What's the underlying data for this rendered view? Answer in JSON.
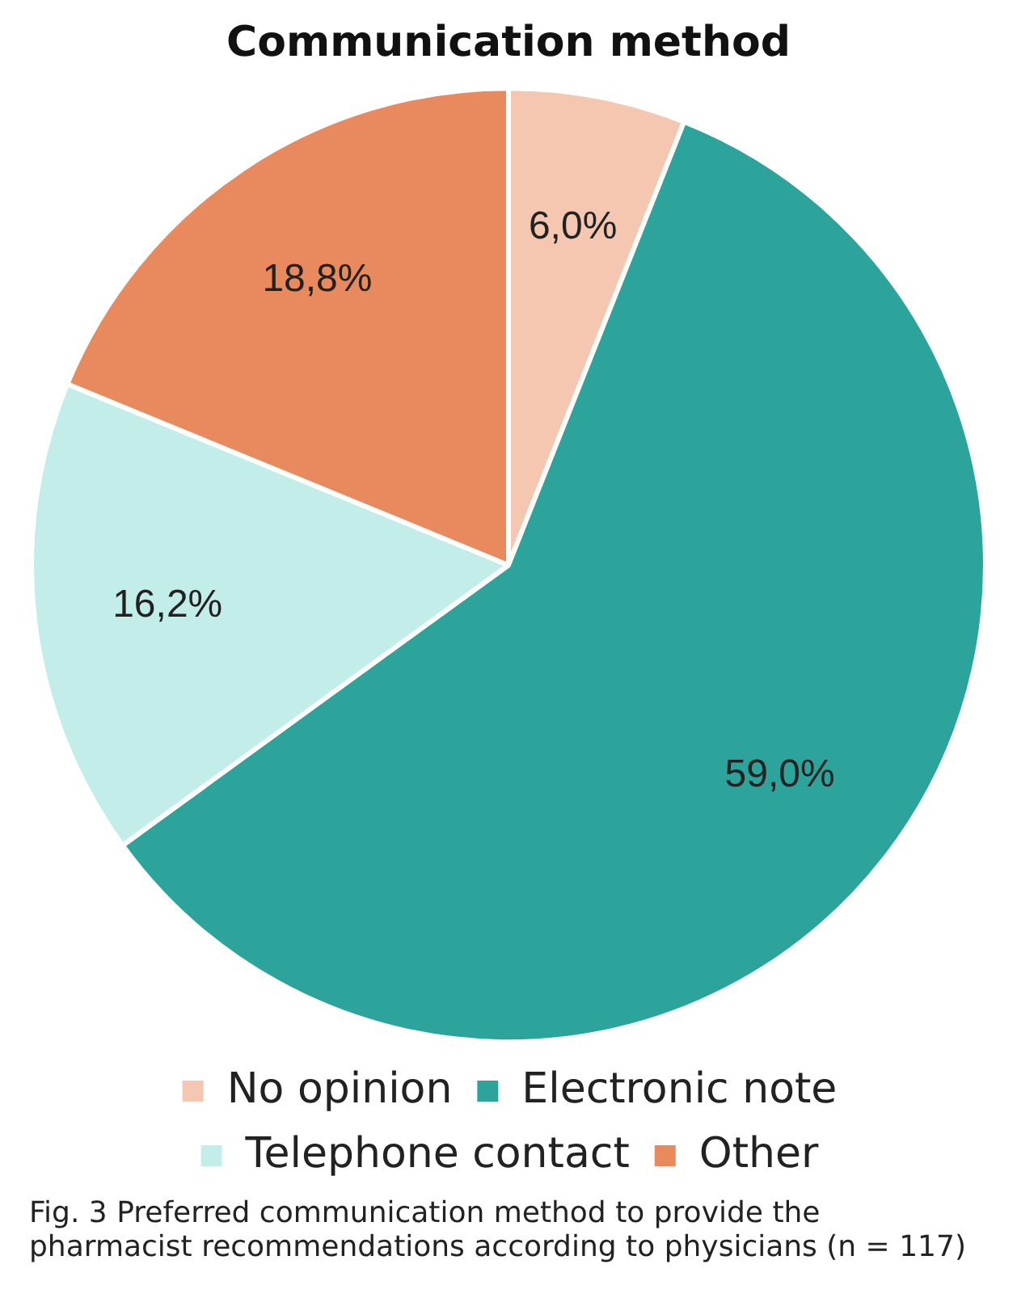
{
  "chart_data": {
    "type": "pie",
    "title": "Communication method",
    "categories": [
      "No opinion",
      "Electronic note",
      "Telephone contact",
      "Other"
    ],
    "values": [
      6.0,
      59.0,
      16.2,
      18.8
    ],
    "value_labels": [
      "6,0%",
      "59,0%",
      "16,2%",
      "18,8%"
    ],
    "colors": [
      "#f5c6b0",
      "#2ca39b",
      "#c3ede9",
      "#e98a5e"
    ],
    "legend": "bottom",
    "annotations": [
      "Fig. 3 Preferred communication method to provide the pharmacist recommendations according to physicians (n = 117)"
    ]
  }
}
